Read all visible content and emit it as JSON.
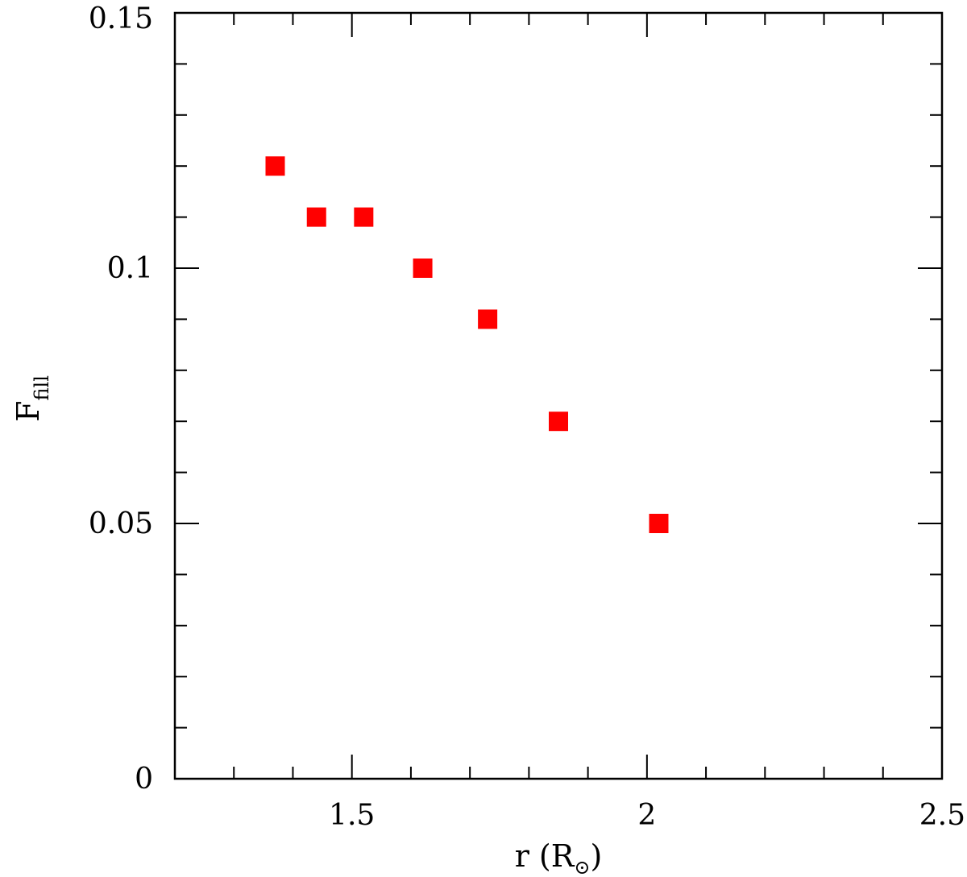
{
  "chart_data": {
    "type": "scatter",
    "xlabel": "r (R⊙)",
    "xlabel_parts": {
      "main": "r (R",
      "sub": "⊙",
      "close": ")"
    },
    "ylabel": "Ffill",
    "ylabel_parts": {
      "main": "F",
      "sub": "fill"
    },
    "xlim": [
      1.2,
      2.5
    ],
    "ylim": [
      0,
      0.15
    ],
    "x_ticks": [
      {
        "value": 1.5,
        "label": "1.5"
      },
      {
        "value": 2.0,
        "label": "2"
      },
      {
        "value": 2.5,
        "label": "2.5"
      }
    ],
    "y_ticks": [
      {
        "value": 0,
        "label": "0"
      },
      {
        "value": 0.05,
        "label": "0.05"
      },
      {
        "value": 0.1,
        "label": "0.1"
      },
      {
        "value": 0.15,
        "label": "0.15"
      }
    ],
    "x_minor_step": 0.1,
    "y_minor_step": 0.01,
    "grid": false,
    "marker": "square",
    "marker_color": "#ff0000",
    "points": [
      {
        "x": 1.37,
        "y": 0.12
      },
      {
        "x": 1.44,
        "y": 0.11
      },
      {
        "x": 1.52,
        "y": 0.11
      },
      {
        "x": 1.62,
        "y": 0.1
      },
      {
        "x": 1.73,
        "y": 0.09
      },
      {
        "x": 1.85,
        "y": 0.07
      },
      {
        "x": 2.02,
        "y": 0.05
      }
    ]
  }
}
